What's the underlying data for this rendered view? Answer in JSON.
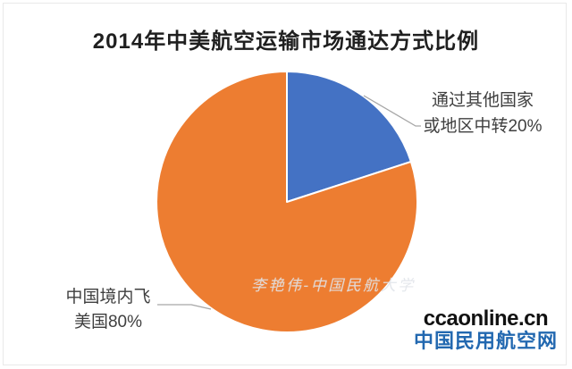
{
  "chart_data": {
    "type": "pie",
    "title": "2014年中美航空运输市场通达方式比例",
    "start_angle_deg": 0,
    "direction": "clockwise",
    "legend_position": "none",
    "data_labels": "outside-with-leader-lines",
    "slices": [
      {
        "name": "transit-via-other-countries",
        "label": "通过其他国家或地区中转",
        "value": 20,
        "percent_label": "20%",
        "color": "#4472C4"
      },
      {
        "name": "china-direct-to-us",
        "label": "中国境内飞美国",
        "value": 80,
        "percent_label": "80%",
        "color": "#ED7D31"
      }
    ]
  },
  "title": {
    "text": "2014年中美航空运输市场通达方式比例"
  },
  "callouts": {
    "blue": {
      "line1": "通过其他国家",
      "line2": "或地区中转20%"
    },
    "orange": {
      "line1": "中国境内飞",
      "line2": "美国80%"
    }
  },
  "watermark": {
    "text": "李艳伟-中国民航大学"
  },
  "branding": {
    "domain": "ccaonline.cn",
    "name": "中国民用航空网"
  },
  "colors": {
    "slice_blue": "#4472C4",
    "slice_orange": "#ED7D31",
    "leader_line": "#A6A6A6",
    "title_text": "#1F1F1F",
    "label_text": "#3F3F3F",
    "frame_border": "#E9E9E9",
    "branding_domain": "#111111",
    "branding_name": "#2268B0"
  }
}
